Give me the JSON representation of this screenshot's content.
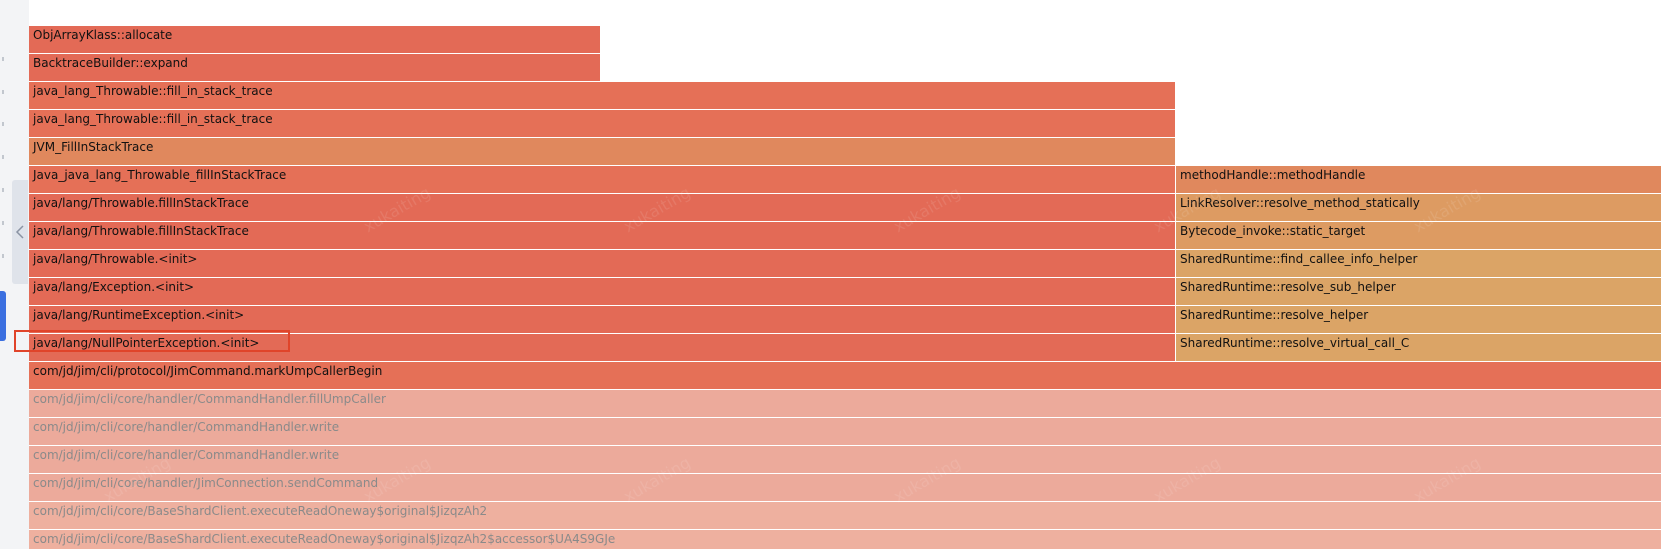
{
  "colors": {
    "deep_red": "#e36a56",
    "red": "#e57057",
    "orange": "#e0885d",
    "amber": "#dd9b62",
    "gold": "#dba466",
    "light": "#ecaa9b",
    "lighter": "#eeb09f",
    "highlight": "#e0442a",
    "accent_blue": "#3b6fe0"
  },
  "watermark_text": "xukaiting",
  "sidebar": {
    "collapse_icon": "chevron-left-icon"
  },
  "flamegraph": {
    "frames": [
      {
        "label": "ObjArrayKlass::allocate",
        "row": 0,
        "start": 0,
        "end": 0.3505,
        "color": "deep_red",
        "faded": false
      },
      {
        "label": "BacktraceBuilder::expand",
        "row": 1,
        "start": 0,
        "end": 0.3505,
        "color": "deep_red",
        "faded": false
      },
      {
        "label": "java_lang_Throwable::fill_in_stack_trace",
        "row": 2,
        "start": 0,
        "end": 0.7026,
        "color": "red",
        "faded": false
      },
      {
        "label": "java_lang_Throwable::fill_in_stack_trace",
        "row": 3,
        "start": 0,
        "end": 0.7026,
        "color": "red",
        "faded": false
      },
      {
        "label": "JVM_FillInStackTrace",
        "row": 4,
        "start": 0,
        "end": 0.7026,
        "color": "orange",
        "faded": false
      },
      {
        "label": "Java_java_lang_Throwable_fillInStackTrace",
        "row": 5,
        "start": 0,
        "end": 0.7026,
        "color": "red",
        "faded": false
      },
      {
        "label": "methodHandle::methodHandle",
        "row": 5,
        "start": 0.7026,
        "end": 1,
        "color": "orange",
        "faded": false
      },
      {
        "label": "java/lang/Throwable.fillInStackTrace",
        "row": 6,
        "start": 0,
        "end": 0.7026,
        "color": "deep_red",
        "faded": false
      },
      {
        "label": "LinkResolver::resolve_method_statically",
        "row": 6,
        "start": 0.7026,
        "end": 1,
        "color": "amber",
        "faded": false
      },
      {
        "label": "java/lang/Throwable.fillInStackTrace",
        "row": 7,
        "start": 0,
        "end": 0.7026,
        "color": "deep_red",
        "faded": false
      },
      {
        "label": "Bytecode_invoke::static_target",
        "row": 7,
        "start": 0.7026,
        "end": 1,
        "color": "amber",
        "faded": false
      },
      {
        "label": "java/lang/Throwable.<init>",
        "row": 8,
        "start": 0,
        "end": 0.7026,
        "color": "deep_red",
        "faded": false
      },
      {
        "label": "SharedRuntime::find_callee_info_helper",
        "row": 8,
        "start": 0.7026,
        "end": 1,
        "color": "gold",
        "faded": false
      },
      {
        "label": "java/lang/Exception.<init>",
        "row": 9,
        "start": 0,
        "end": 0.7026,
        "color": "deep_red",
        "faded": false
      },
      {
        "label": "SharedRuntime::resolve_sub_helper",
        "row": 9,
        "start": 0.7026,
        "end": 1,
        "color": "gold",
        "faded": false
      },
      {
        "label": "java/lang/RuntimeException.<init>",
        "row": 10,
        "start": 0,
        "end": 0.7026,
        "color": "deep_red",
        "faded": false
      },
      {
        "label": "SharedRuntime::resolve_helper",
        "row": 10,
        "start": 0.7026,
        "end": 1,
        "color": "gold",
        "faded": false
      },
      {
        "label": "java/lang/NullPointerException.<init>",
        "row": 11,
        "start": 0,
        "end": 0.7026,
        "color": "deep_red",
        "faded": false
      },
      {
        "label": "SharedRuntime::resolve_virtual_call_C",
        "row": 11,
        "start": 0.7026,
        "end": 1,
        "color": "gold",
        "faded": false
      },
      {
        "label": "com/jd/jim/cli/protocol/JimCommand.markUmpCallerBegin",
        "row": 12,
        "start": 0,
        "end": 1,
        "color": "red",
        "faded": false
      },
      {
        "label": "com/jd/jim/cli/core/handler/CommandHandler.fillUmpCaller",
        "row": 13,
        "start": 0,
        "end": 1,
        "color": "light",
        "faded": true
      },
      {
        "label": "com/jd/jim/cli/core/handler/CommandHandler.write",
        "row": 14,
        "start": 0,
        "end": 1,
        "color": "light",
        "faded": true
      },
      {
        "label": "com/jd/jim/cli/core/handler/CommandHandler.write",
        "row": 15,
        "start": 0,
        "end": 1,
        "color": "light",
        "faded": true
      },
      {
        "label": "com/jd/jim/cli/core/handler/JimConnection.sendCommand",
        "row": 16,
        "start": 0,
        "end": 1,
        "color": "light",
        "faded": true
      },
      {
        "label": "com/jd/jim/cli/core/BaseShardClient.executeReadOneway$original$JizqzAh2",
        "row": 17,
        "start": 0,
        "end": 1,
        "color": "lighter",
        "faded": true
      },
      {
        "label": "com/jd/jim/cli/core/BaseShardClient.executeReadOneway$original$JizqzAh2$accessor$UA4S9GJe",
        "row": 18,
        "start": 0,
        "end": 1,
        "color": "lighter",
        "faded": true
      }
    ],
    "highlighted_frame": "java/lang/NullPointerException.<init>"
  }
}
